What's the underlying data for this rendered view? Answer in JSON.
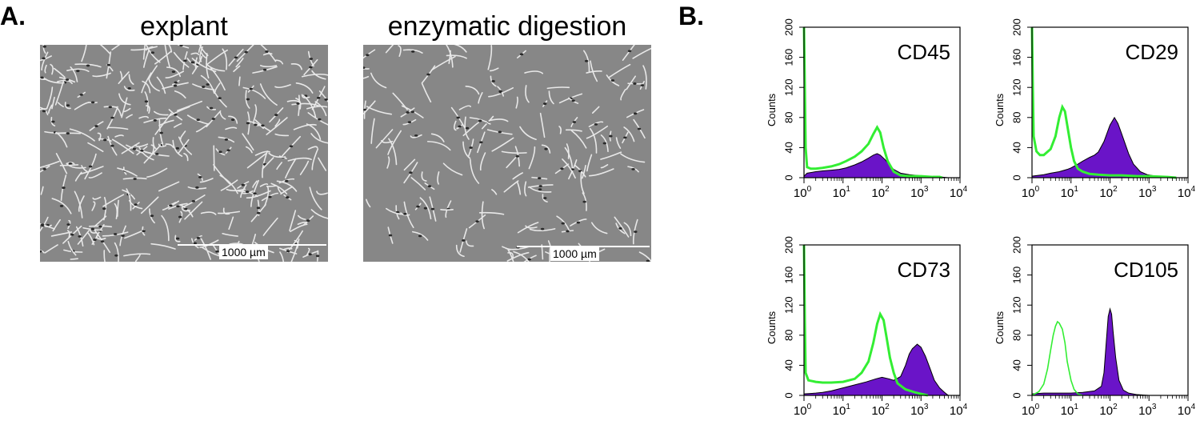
{
  "panel_a": {
    "label": "A.",
    "images": [
      {
        "title": "explant",
        "scale_label": "1000 µm"
      },
      {
        "title": "enzymatic digestion",
        "scale_label": "1000 µm"
      }
    ]
  },
  "panel_b": {
    "label": "B."
  },
  "colors": {
    "isotype": "#33ee33",
    "stained": "#6a14c8",
    "outline": "#000000"
  },
  "chart_data": [
    {
      "type": "area",
      "title": "CD45",
      "xlabel": "",
      "ylabel": "Counts",
      "xscale": "log",
      "xlim": [
        1,
        10000
      ],
      "ylim": [
        0,
        200
      ],
      "yticks": [
        0,
        40,
        80,
        120,
        160,
        200
      ],
      "xticks": [
        "10^0",
        "10^1",
        "10^2",
        "10^3",
        "10^4"
      ],
      "isotype": {
        "x": [
          1,
          1.05,
          1.1,
          1.2,
          1.5,
          2,
          3,
          5,
          8,
          12,
          20,
          30,
          45,
          60,
          75,
          90,
          110,
          140,
          200,
          300,
          500,
          1000,
          2000,
          3000,
          3500
        ],
        "y": [
          200,
          120,
          40,
          14,
          12,
          12,
          13,
          15,
          18,
          22,
          28,
          35,
          45,
          58,
          67,
          60,
          40,
          22,
          8,
          3,
          2,
          2,
          1,
          1,
          0
        ]
      },
      "stained": {
        "x": [
          1,
          1.2,
          2,
          3,
          5,
          8,
          12,
          20,
          30,
          45,
          60,
          75,
          90,
          120,
          150,
          200,
          300,
          500,
          800,
          1200,
          2000,
          3000,
          5000
        ],
        "y": [
          2,
          6,
          8,
          9,
          10,
          11,
          13,
          17,
          21,
          26,
          30,
          32,
          30,
          24,
          18,
          11,
          6,
          4,
          3,
          2,
          1,
          1,
          0
        ]
      }
    },
    {
      "type": "area",
      "title": "CD29",
      "xlabel": "",
      "ylabel": "Counts",
      "xscale": "log",
      "xlim": [
        1,
        10000
      ],
      "ylim": [
        0,
        200
      ],
      "yticks": [
        0,
        40,
        80,
        120,
        160,
        200
      ],
      "xticks": [
        "10^0",
        "10^1",
        "10^2",
        "10^3",
        "10^4"
      ],
      "isotype": {
        "x": [
          1,
          1.05,
          1.1,
          1.3,
          1.6,
          2,
          3,
          4,
          5,
          6,
          7,
          8,
          10,
          12,
          15,
          20,
          30,
          50,
          100,
          200,
          500,
          1000,
          3000,
          5000
        ],
        "y": [
          200,
          120,
          55,
          35,
          30,
          30,
          38,
          55,
          80,
          94,
          88,
          70,
          40,
          22,
          12,
          8,
          5,
          4,
          3,
          3,
          2,
          2,
          1,
          0
        ]
      },
      "stained": {
        "x": [
          1,
          2,
          3,
          5,
          8,
          10,
          15,
          20,
          30,
          40,
          50,
          70,
          100,
          130,
          160,
          200,
          300,
          400,
          600,
          900,
          1500,
          3000
        ],
        "y": [
          2,
          4,
          6,
          8,
          11,
          13,
          18,
          22,
          27,
          30,
          34,
          48,
          70,
          80,
          72,
          58,
          32,
          18,
          8,
          4,
          2,
          0
        ]
      }
    },
    {
      "type": "area",
      "title": "CD73",
      "xlabel": "",
      "ylabel": "Counts",
      "xscale": "log",
      "xlim": [
        1,
        10000
      ],
      "ylim": [
        0,
        200
      ],
      "yticks": [
        0,
        40,
        80,
        120,
        160,
        200
      ],
      "xticks": [
        "10^0",
        "10^1",
        "10^2",
        "10^3",
        "10^4"
      ],
      "isotype": {
        "x": [
          1,
          1.05,
          1.1,
          1.3,
          2,
          3,
          5,
          10,
          20,
          30,
          45,
          60,
          75,
          90,
          110,
          130,
          160,
          200,
          250,
          400,
          700,
          1000,
          1500
        ],
        "y": [
          200,
          100,
          30,
          20,
          18,
          17,
          17,
          18,
          22,
          30,
          45,
          70,
          95,
          108,
          100,
          78,
          50,
          30,
          16,
          8,
          4,
          2,
          0
        ]
      },
      "stained": {
        "x": [
          1,
          2,
          3,
          5,
          10,
          20,
          40,
          70,
          100,
          150,
          200,
          300,
          400,
          500,
          600,
          800,
          1000,
          1300,
          1700,
          2200,
          3000,
          4000,
          5000
        ],
        "y": [
          2,
          3,
          4,
          6,
          10,
          14,
          18,
          22,
          24,
          22,
          20,
          25,
          40,
          55,
          62,
          68,
          64,
          52,
          36,
          20,
          10,
          4,
          0
        ]
      }
    },
    {
      "type": "area",
      "title": "CD105",
      "xlabel": "",
      "ylabel": "Counts",
      "xscale": "log",
      "xlim": [
        1,
        10000
      ],
      "ylim": [
        0,
        200
      ],
      "yticks": [
        0,
        40,
        80,
        120,
        160,
        200
      ],
      "xticks": [
        "10^0",
        "10^1",
        "10^2",
        "10^3",
        "10^4"
      ],
      "isotype": {
        "x": [
          1,
          1.5,
          2,
          2.5,
          3,
          3.5,
          4,
          4.5,
          5,
          6,
          7,
          8,
          10,
          12,
          15,
          20
        ],
        "y": [
          0,
          5,
          15,
          35,
          60,
          80,
          92,
          98,
          96,
          88,
          70,
          45,
          20,
          8,
          2,
          0
        ]
      },
      "stained": {
        "x": [
          1,
          2,
          5,
          10,
          20,
          40,
          60,
          70,
          80,
          90,
          100,
          110,
          120,
          140,
          170,
          220,
          300,
          500,
          1000
        ],
        "y": [
          2,
          3,
          3,
          3,
          4,
          6,
          12,
          30,
          70,
          105,
          115,
          108,
          85,
          50,
          20,
          7,
          3,
          1,
          0
        ]
      }
    }
  ]
}
